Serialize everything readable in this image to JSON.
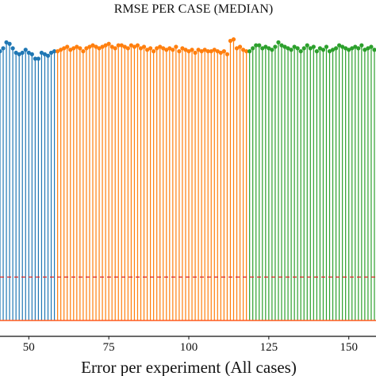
{
  "chart_data": {
    "type": "stem",
    "title": "RMSE PER CASE (MEDIAN)",
    "xlabel": "Error per experiment (All cases)",
    "ylabel": "",
    "xlim": [
      41,
      158.5
    ],
    "ylim": [
      0,
      1.0
    ],
    "x_ticks": [
      50,
      75,
      100,
      125,
      150
    ],
    "x_tick_labels": [
      "50",
      "75",
      "100",
      "125",
      "150"
    ],
    "grid": false,
    "reference_line": {
      "y": 0.146,
      "color": "#d62728",
      "style": "dashed"
    },
    "baseline": {
      "color": "#ff5a1f"
    },
    "series": [
      {
        "color": "#1f77b4",
        "x": [
          40,
          41,
          42,
          43,
          44,
          45,
          46,
          47,
          48,
          49,
          50,
          51,
          52,
          53,
          54,
          55,
          56,
          57,
          58
        ],
        "y": [
          0.915,
          0.905,
          0.915,
          0.935,
          0.93,
          0.915,
          0.9,
          0.895,
          0.9,
          0.91,
          0.9,
          0.895,
          0.88,
          0.88,
          0.9,
          0.895,
          0.89,
          0.9,
          0.905
        ]
      },
      {
        "color": "#ff7f0e",
        "x": [
          59,
          60,
          61,
          62,
          63,
          64,
          65,
          66,
          67,
          68,
          69,
          70,
          71,
          72,
          73,
          74,
          75,
          76,
          77,
          78,
          79,
          80,
          81,
          82,
          83,
          84,
          85,
          86,
          87,
          88,
          89,
          90,
          91,
          92,
          93,
          94,
          95,
          96,
          97,
          98,
          99,
          100,
          101,
          102,
          103,
          104,
          105,
          106,
          107,
          108,
          109,
          110,
          111,
          112,
          113,
          114,
          115,
          116,
          117,
          118
        ],
        "y": [
          0.905,
          0.91,
          0.915,
          0.92,
          0.91,
          0.915,
          0.92,
          0.915,
          0.905,
          0.915,
          0.92,
          0.925,
          0.92,
          0.915,
          0.92,
          0.925,
          0.93,
          0.92,
          0.915,
          0.925,
          0.925,
          0.92,
          0.915,
          0.925,
          0.92,
          0.925,
          0.915,
          0.92,
          0.91,
          0.915,
          0.905,
          0.915,
          0.92,
          0.915,
          0.91,
          0.915,
          0.91,
          0.92,
          0.905,
          0.915,
          0.91,
          0.905,
          0.91,
          0.9,
          0.91,
          0.905,
          0.91,
          0.905,
          0.905,
          0.91,
          0.905,
          0.9,
          0.905,
          0.895,
          0.94,
          0.945,
          0.915,
          0.92,
          0.91,
          0.905
        ]
      },
      {
        "color": "#2ca02c",
        "x": [
          119,
          120,
          121,
          122,
          123,
          124,
          125,
          126,
          127,
          128,
          129,
          130,
          131,
          132,
          133,
          134,
          135,
          136,
          137,
          138,
          139,
          140,
          141,
          142,
          143,
          144,
          145,
          146,
          147,
          148,
          149,
          150,
          151,
          152,
          153,
          154,
          155,
          156,
          157,
          158
        ],
        "y": [
          0.905,
          0.915,
          0.925,
          0.925,
          0.915,
          0.92,
          0.915,
          0.91,
          0.92,
          0.935,
          0.925,
          0.92,
          0.915,
          0.91,
          0.92,
          0.915,
          0.905,
          0.915,
          0.925,
          0.915,
          0.92,
          0.905,
          0.915,
          0.91,
          0.92,
          0.905,
          0.91,
          0.915,
          0.925,
          0.92,
          0.915,
          0.91,
          0.915,
          0.92,
          0.915,
          0.925,
          0.91,
          0.915,
          0.92,
          0.91
        ]
      }
    ]
  }
}
